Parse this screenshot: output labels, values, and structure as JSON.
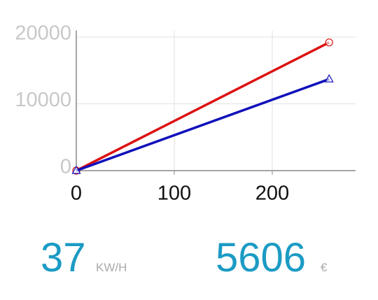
{
  "chart_data": {
    "type": "line",
    "x": [
      0,
      258
    ],
    "series": [
      {
        "color": "#dd1111",
        "marker": "circle",
        "values": [
          0,
          19200
        ]
      },
      {
        "color": "#1111bb",
        "marker": "triangle",
        "values": [
          0,
          13700
        ]
      }
    ],
    "xlim": [
      0,
      285
    ],
    "xticks": [
      0,
      100,
      200
    ],
    "ylim": [
      0,
      21000
    ],
    "yticks": [
      0,
      10000,
      20000
    ],
    "grid": true
  },
  "readouts": [
    {
      "value": "37",
      "unit": "KW/H"
    },
    {
      "value": "5606",
      "unit": "€"
    }
  ]
}
